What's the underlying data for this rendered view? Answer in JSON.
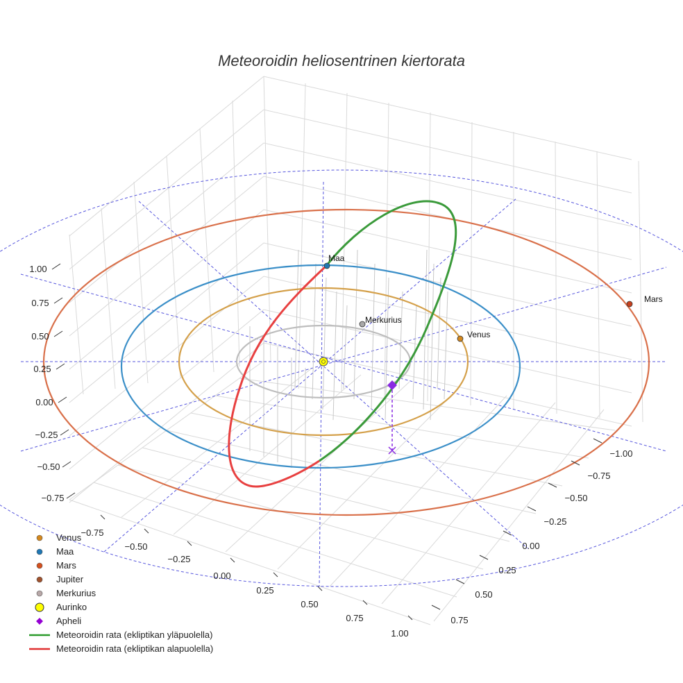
{
  "chart_data": {
    "type": "scatter3d",
    "title": "Meteoroidin heliosentrinen kiertorata",
    "axes": {
      "x_ticks": [
        "−0.75",
        "−0.50",
        "−0.25",
        "0.00",
        "0.25",
        "0.50",
        "0.75",
        "1.00"
      ],
      "y_ticks": [
        "−1.00",
        "−0.75",
        "−0.50",
        "−0.25",
        "0.00",
        "0.25",
        "0.50",
        "0.75"
      ],
      "z_ticks": [
        "1.00",
        "0.75",
        "0.50",
        "0.25",
        "0.00",
        "−0.25",
        "−0.50",
        "−0.75"
      ],
      "xlim": [
        -0.75,
        1.0
      ],
      "ylim": [
        -1.0,
        0.75
      ],
      "zlim": [
        -0.75,
        1.0
      ],
      "grid": true
    },
    "orbits": [
      {
        "name": "Merkurius",
        "radius_au": 0.39,
        "color": "#bdbdbd"
      },
      {
        "name": "Venus",
        "radius_au": 0.72,
        "color": "#d4a04a"
      },
      {
        "name": "Maa",
        "radius_au": 1.0,
        "color": "#3b8fc8"
      },
      {
        "name": "Mars",
        "radius_au": 1.52,
        "color": "#d9704a"
      }
    ],
    "planet_labels": [
      {
        "name": "Maa",
        "color": "#1f77b4"
      },
      {
        "name": "Merkurius",
        "color": "#a9a9a9"
      },
      {
        "name": "Venus",
        "color": "#d4881e"
      },
      {
        "name": "Mars",
        "color": "#c8401e"
      }
    ],
    "meteoroid": {
      "color_above": "#3a9a3a",
      "color_below": "#e84040",
      "aphelion_marker_color": "#8a2be2"
    },
    "legend": [
      {
        "label": "Venus",
        "marker": "dot",
        "color": "#d4881e"
      },
      {
        "label": "Maa",
        "marker": "dot",
        "color": "#1f77b4"
      },
      {
        "label": "Mars",
        "marker": "dot",
        "color": "#d4501e"
      },
      {
        "label": "Jupiter",
        "marker": "dot",
        "color": "#a0522d"
      },
      {
        "label": "Merkurius",
        "marker": "dot",
        "color": "#b8a8a8"
      },
      {
        "label": "Aurinko",
        "marker": "ring",
        "color": "#ffff00"
      },
      {
        "label": "Apheli",
        "marker": "diamond",
        "color": "#9400d3"
      },
      {
        "label": "Meteoroidin rata (ekliptikan yläpuolella)",
        "marker": "line",
        "color": "#2a9a2a"
      },
      {
        "label": "Meteoroidin rata (ekliptikan alapuolella)",
        "marker": "line",
        "color": "#e03030"
      }
    ],
    "legend_position": "bottom-left"
  }
}
